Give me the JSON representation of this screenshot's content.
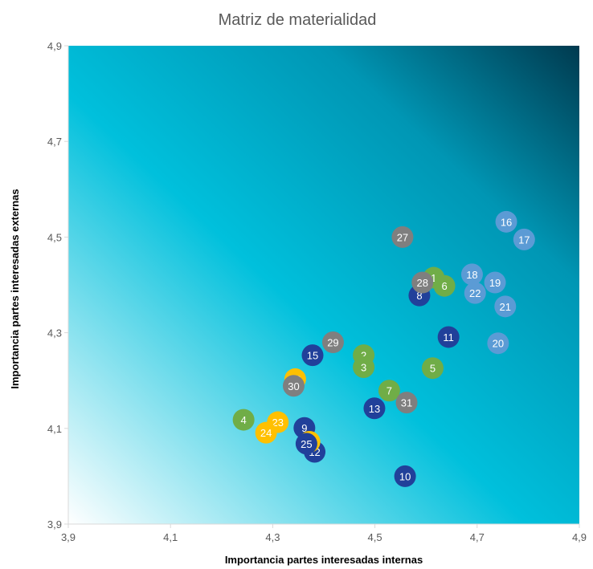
{
  "chart_data": {
    "type": "scatter",
    "title": "Matriz de materialidad",
    "xlabel": "Importancia partes interesadas internas",
    "ylabel": "Importancia partes interesadas externas",
    "xlim": [
      3.9,
      4.9
    ],
    "ylim": [
      3.9,
      4.9
    ],
    "x_ticks": [
      "3,9",
      "4,1",
      "4,3",
      "4,5",
      "4,7",
      "4,9"
    ],
    "y_ticks": [
      "3,9",
      "4,1",
      "4,3",
      "4,5",
      "4,7",
      "4,9"
    ],
    "grid": false,
    "legend": "none",
    "background_gradient": {
      "from": "#ffffff",
      "mid": "#00c0dc",
      "to": "#003a4f"
    },
    "category_colors": {
      "navy": "#21409a",
      "green": "#70ad47",
      "gray": "#7f7f7f",
      "yellow": "#ffc000",
      "lightblue": "#5b9bd5"
    },
    "points": [
      {
        "label": "1",
        "x": 4.615,
        "y": 4.415,
        "cat": "green"
      },
      {
        "label": "2",
        "x": 4.478,
        "y": 4.253,
        "cat": "green"
      },
      {
        "label": "3",
        "x": 4.478,
        "y": 4.228,
        "cat": "green"
      },
      {
        "label": "4",
        "x": 4.243,
        "y": 4.118,
        "cat": "green"
      },
      {
        "label": "5",
        "x": 4.613,
        "y": 4.226,
        "cat": "green"
      },
      {
        "label": "6",
        "x": 4.636,
        "y": 4.398,
        "cat": "green"
      },
      {
        "label": "7",
        "x": 4.528,
        "y": 4.179,
        "cat": "green"
      },
      {
        "label": "8",
        "x": 4.587,
        "y": 4.378,
        "cat": "navy"
      },
      {
        "label": "9",
        "x": 4.362,
        "y": 4.101,
        "cat": "navy"
      },
      {
        "label": "10",
        "x": 4.559,
        "y": 4.0,
        "cat": "navy"
      },
      {
        "label": "11",
        "x": 4.644,
        "y": 4.291,
        "cat": "navy"
      },
      {
        "label": "12",
        "x": 4.382,
        "y": 4.051,
        "cat": "navy"
      },
      {
        "label": "13",
        "x": 4.499,
        "y": 4.142,
        "cat": "navy"
      },
      {
        "label": "14",
        "x": 4.372,
        "y": 4.072,
        "cat": "yellow"
      },
      {
        "label": "15",
        "x": 4.378,
        "y": 4.253,
        "cat": "navy"
      },
      {
        "label": "16",
        "x": 4.757,
        "y": 4.532,
        "cat": "lightblue"
      },
      {
        "label": "17",
        "x": 4.792,
        "y": 4.495,
        "cat": "lightblue"
      },
      {
        "label": "18",
        "x": 4.69,
        "y": 4.422,
        "cat": "lightblue"
      },
      {
        "label": "19",
        "x": 4.735,
        "y": 4.405,
        "cat": "lightblue"
      },
      {
        "label": "20",
        "x": 4.741,
        "y": 4.278,
        "cat": "lightblue"
      },
      {
        "label": "21",
        "x": 4.755,
        "y": 4.355,
        "cat": "lightblue"
      },
      {
        "label": "22",
        "x": 4.696,
        "y": 4.383,
        "cat": "lightblue"
      },
      {
        "label": "23",
        "x": 4.31,
        "y": 4.113,
        "cat": "yellow"
      },
      {
        "label": "24",
        "x": 4.287,
        "y": 4.091,
        "cat": "yellow"
      },
      {
        "label": "25",
        "x": 4.366,
        "y": 4.068,
        "cat": "navy"
      },
      {
        "label": "26",
        "x": 4.344,
        "y": 4.203,
        "cat": "yellow"
      },
      {
        "label": "27",
        "x": 4.554,
        "y": 4.5,
        "cat": "gray"
      },
      {
        "label": "28",
        "x": 4.593,
        "y": 4.405,
        "cat": "gray"
      },
      {
        "label": "29",
        "x": 4.418,
        "y": 4.28,
        "cat": "gray"
      },
      {
        "label": "30",
        "x": 4.341,
        "y": 4.189,
        "cat": "gray"
      },
      {
        "label": "31",
        "x": 4.562,
        "y": 4.154,
        "cat": "gray"
      }
    ]
  }
}
